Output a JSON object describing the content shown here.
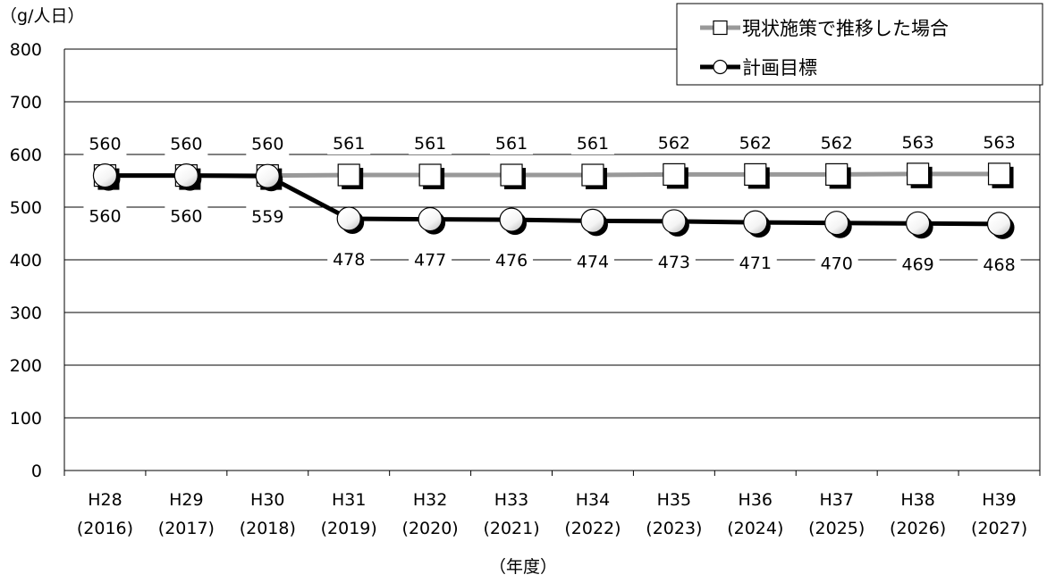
{
  "chart_data": {
    "type": "line",
    "ylabel": "（g/人日）",
    "xlabel": "（年度）",
    "ylim": [
      0,
      800
    ],
    "yticks": [
      0,
      100,
      200,
      300,
      400,
      500,
      600,
      700,
      800
    ],
    "grid": true,
    "legend_position": "top-right",
    "categories": [
      {
        "era": "H28",
        "year": "(2016)"
      },
      {
        "era": "H29",
        "year": "(2017)"
      },
      {
        "era": "H30",
        "year": "(2018)"
      },
      {
        "era": "H31",
        "year": "(2019)"
      },
      {
        "era": "H32",
        "year": "(2020)"
      },
      {
        "era": "H33",
        "year": "(2021)"
      },
      {
        "era": "H34",
        "year": "(2022)"
      },
      {
        "era": "H35",
        "year": "(2023)"
      },
      {
        "era": "H36",
        "year": "(2024)"
      },
      {
        "era": "H37",
        "year": "(2025)"
      },
      {
        "era": "H38",
        "year": "(2026)"
      },
      {
        "era": "H39",
        "year": "(2027)"
      }
    ],
    "series": [
      {
        "name": "現状施策で推移した場合",
        "marker": "square",
        "color": "#999999",
        "values": [
          560,
          560,
          560,
          561,
          561,
          561,
          561,
          562,
          562,
          562,
          563,
          563
        ],
        "label_position": "above"
      },
      {
        "name": "計画目標",
        "marker": "circle",
        "color": "#000000",
        "values": [
          560,
          560,
          559,
          478,
          477,
          476,
          474,
          473,
          471,
          470,
          469,
          468
        ],
        "label_position": "below"
      }
    ]
  }
}
